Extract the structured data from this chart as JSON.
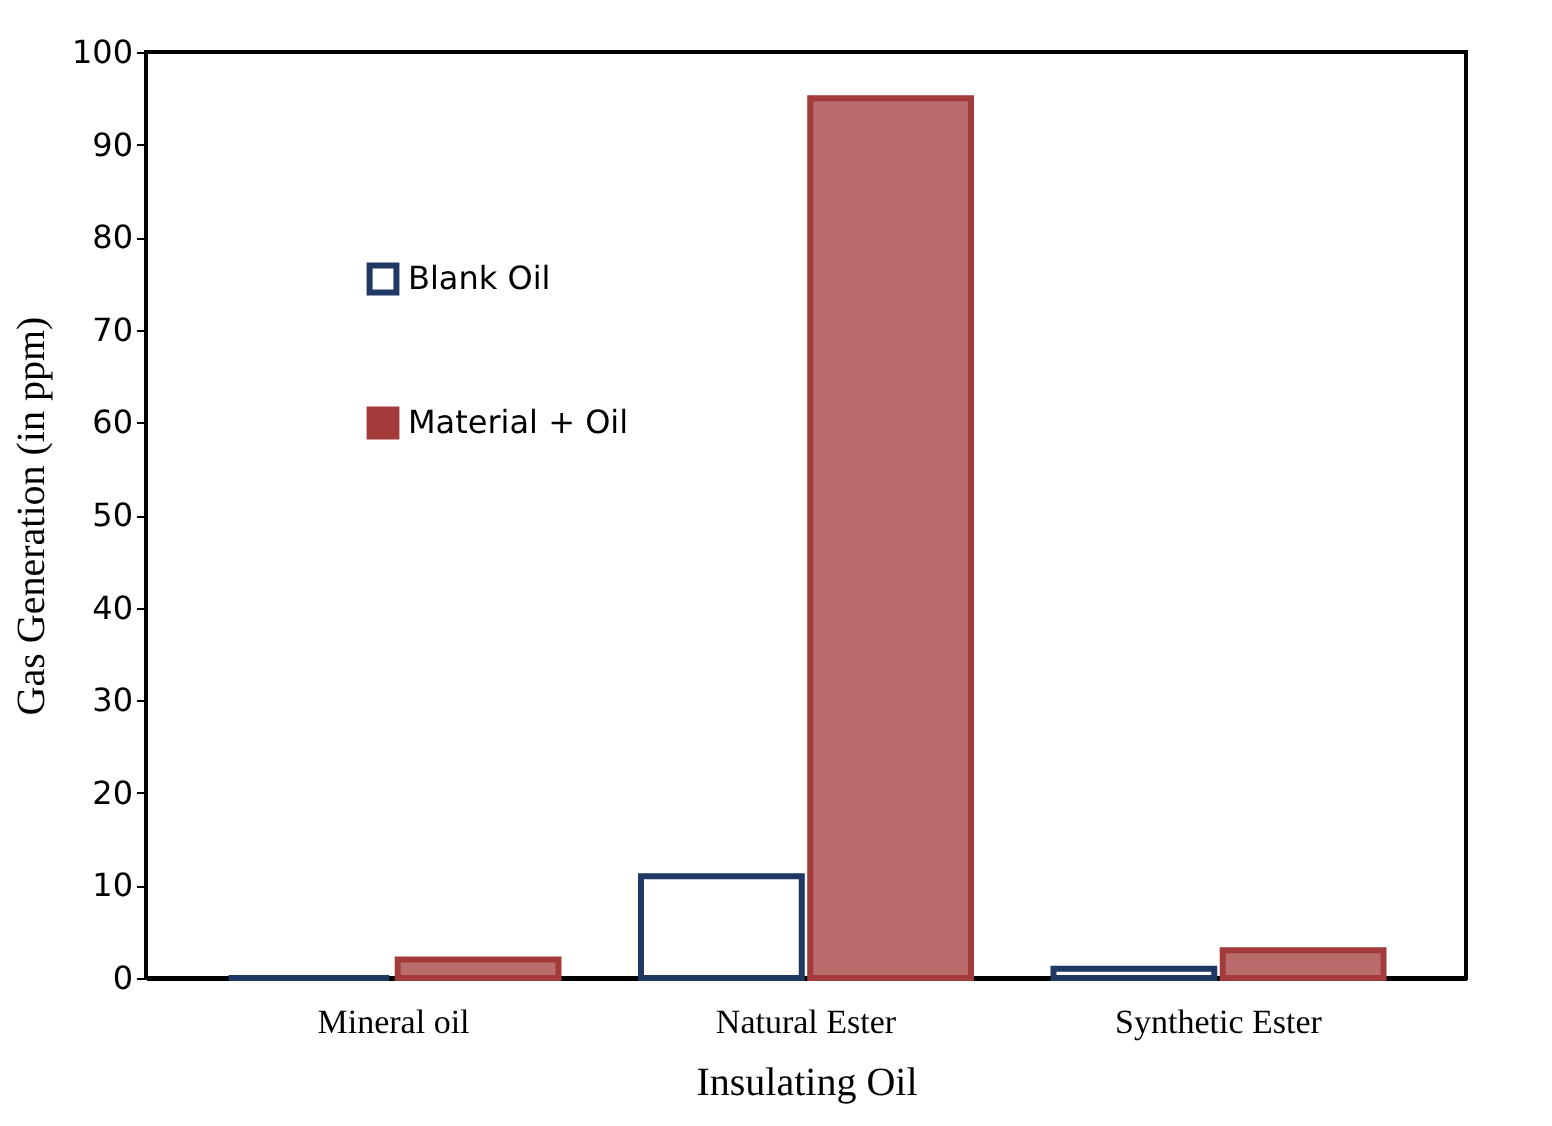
{
  "chart_data": {
    "type": "bar",
    "xlabel": "Insulating Oil",
    "ylabel": "Gas Generation (in ppm)",
    "categories": [
      "Mineral oil",
      "Natural Ester",
      "Synthetic Ester"
    ],
    "series": [
      {
        "name": "Blank Oil",
        "color": "#1f3864",
        "values": [
          0,
          11,
          1
        ]
      },
      {
        "name": "Material + Oil",
        "color": "#a33b3b",
        "values": [
          2,
          95,
          3
        ]
      }
    ],
    "ylim": [
      0,
      100
    ],
    "yticks": [
      0,
      10,
      20,
      30,
      40,
      50,
      60,
      70,
      80,
      90,
      100
    ],
    "grid": false,
    "legend": "top left"
  }
}
